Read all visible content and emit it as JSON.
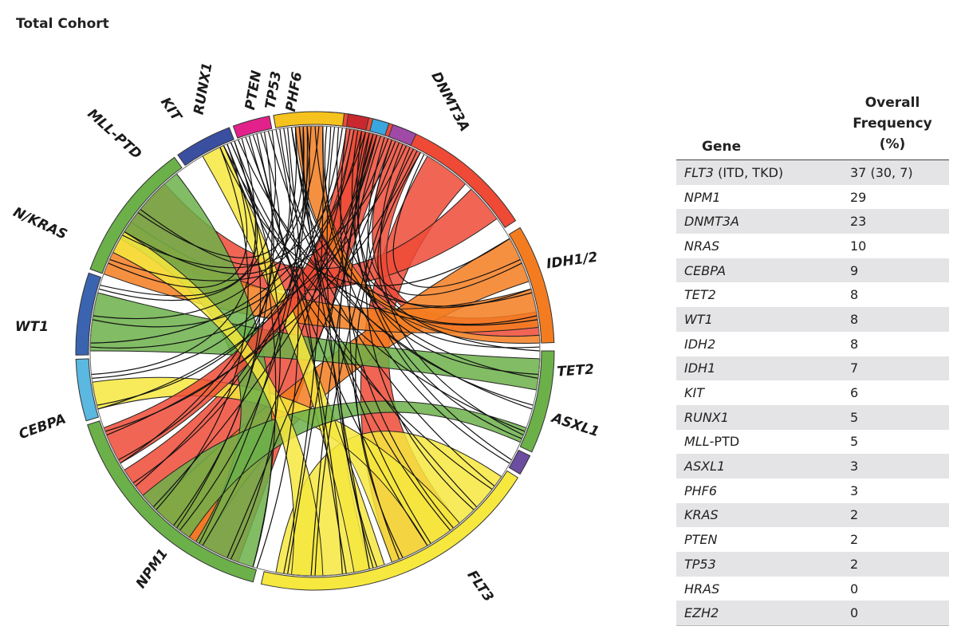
{
  "title": "Total Cohort",
  "table": {
    "header_gene": "Gene",
    "header_freq_line1": "Overall",
    "header_freq_line2": "Frequency (%)",
    "rows": [
      {
        "gene": "FLT3",
        "suffix": " (ITD, TKD)",
        "value": "37 (30, 7)"
      },
      {
        "gene": "NPM1",
        "suffix": "",
        "value": "29"
      },
      {
        "gene": "DNMT3A",
        "suffix": "",
        "value": "23"
      },
      {
        "gene": "NRAS",
        "suffix": "",
        "value": "10"
      },
      {
        "gene": "CEBPA",
        "suffix": "",
        "value": "9"
      },
      {
        "gene": "TET2",
        "suffix": "",
        "value": "8"
      },
      {
        "gene": "WT1",
        "suffix": "",
        "value": "8"
      },
      {
        "gene": "IDH2",
        "suffix": "",
        "value": "8"
      },
      {
        "gene": "IDH1",
        "suffix": "",
        "value": "7"
      },
      {
        "gene": "KIT",
        "suffix": "",
        "value": "6"
      },
      {
        "gene": "RUNX1",
        "suffix": "",
        "value": "5"
      },
      {
        "gene": "MLL",
        "suffix": "-PTD",
        "value": "5"
      },
      {
        "gene": "ASXL1",
        "suffix": "",
        "value": "3"
      },
      {
        "gene": "PHF6",
        "suffix": "",
        "value": "3"
      },
      {
        "gene": "KRAS",
        "suffix": "",
        "value": "2"
      },
      {
        "gene": "PTEN",
        "suffix": "",
        "value": "2"
      },
      {
        "gene": "TP53",
        "suffix": "",
        "value": "2"
      },
      {
        "gene": "HRAS",
        "suffix": "",
        "value": "0"
      },
      {
        "gene": "EZH2",
        "suffix": "",
        "value": "0"
      }
    ]
  },
  "diagram": {
    "segments": [
      {
        "label": "DNMT3A",
        "color": "#ee4a36"
      },
      {
        "label": "IDH1/2",
        "color": "#f47c20"
      },
      {
        "label": "TET2",
        "color": "#6cb04a"
      },
      {
        "label": "ASXL1",
        "color": "#6b4ea0"
      },
      {
        "label": "FLT3",
        "color": "#f6e83e"
      },
      {
        "label": "NPM1",
        "color": "#6cb04a"
      },
      {
        "label": "CEBPA",
        "color": "#5bb8e0"
      },
      {
        "label": "WT1",
        "color": "#3b64b0"
      },
      {
        "label": "N/KRAS",
        "color": "#6cb04a"
      },
      {
        "label": "MLL-PTD",
        "color": "#3b4fa0"
      },
      {
        "label": "KIT",
        "color": "#e2218a"
      },
      {
        "label": "RUNX1",
        "color": "#f6c21e"
      },
      {
        "label": "PTEN",
        "color": "#c8282e"
      },
      {
        "label": "TP53",
        "color": "#3aa6dd"
      },
      {
        "label": "PHF6",
        "color": "#a04aa8"
      }
    ]
  }
}
